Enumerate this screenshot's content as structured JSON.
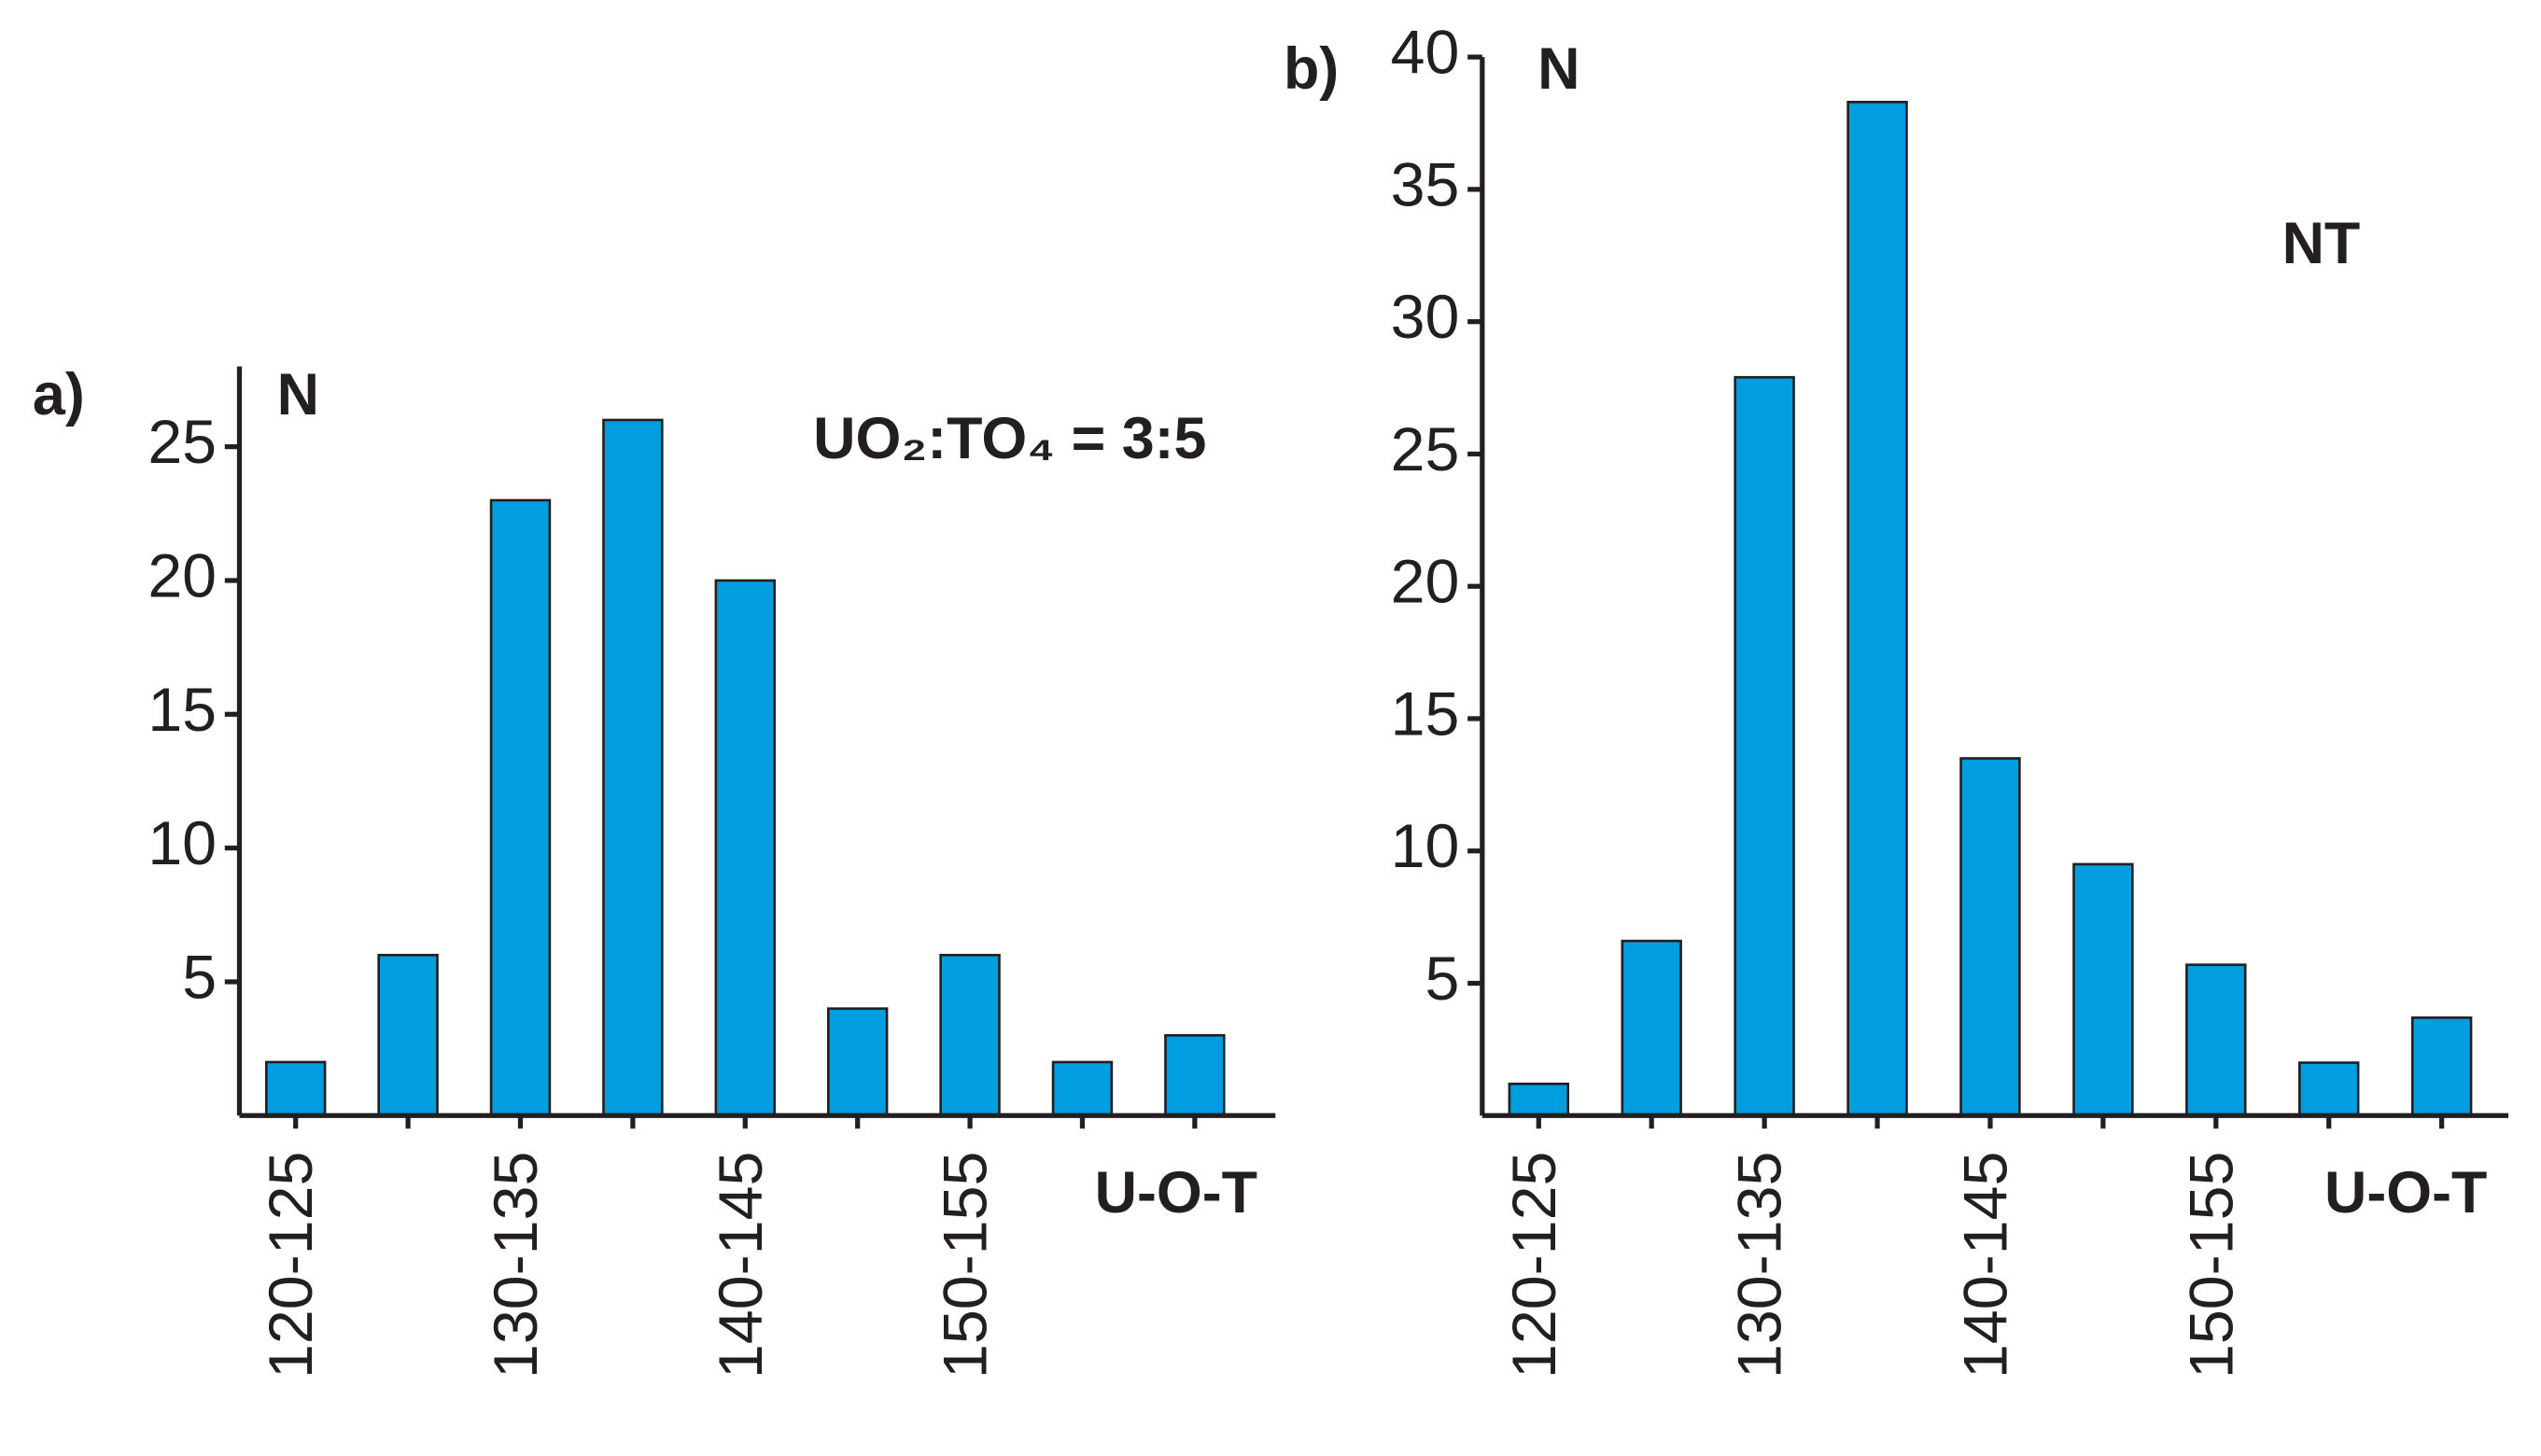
{
  "chart_data": [
    {
      "type": "bar",
      "panel": "a)",
      "ylabel": "N",
      "xlabel": "U-O-T",
      "annotation": "UO₂:TO₄ = 3:5",
      "categories": [
        "120-125",
        null,
        "130-135",
        null,
        "140-145",
        null,
        "150-155",
        null,
        null
      ],
      "values": [
        2,
        6,
        23,
        26,
        20,
        4,
        6,
        2,
        3
      ],
      "color": "#009ddf",
      "ylim": [
        0,
        28
      ],
      "yticks": [
        5,
        10,
        15,
        20,
        25
      ]
    },
    {
      "type": "bar",
      "panel": "b)",
      "ylabel": "N",
      "xlabel": "U-O-T",
      "annotation": "NT",
      "categories": [
        "120-125",
        null,
        "130-135",
        null,
        "140-145",
        null,
        "150-155",
        null,
        null
      ],
      "values": [
        1.2,
        6.6,
        27.9,
        38.3,
        13.5,
        9.5,
        5.7,
        2,
        3.7
      ],
      "color": "#009ddf",
      "ylim": [
        0,
        40
      ],
      "yticks": [
        5,
        10,
        15,
        20,
        25,
        30,
        35,
        40
      ]
    }
  ]
}
